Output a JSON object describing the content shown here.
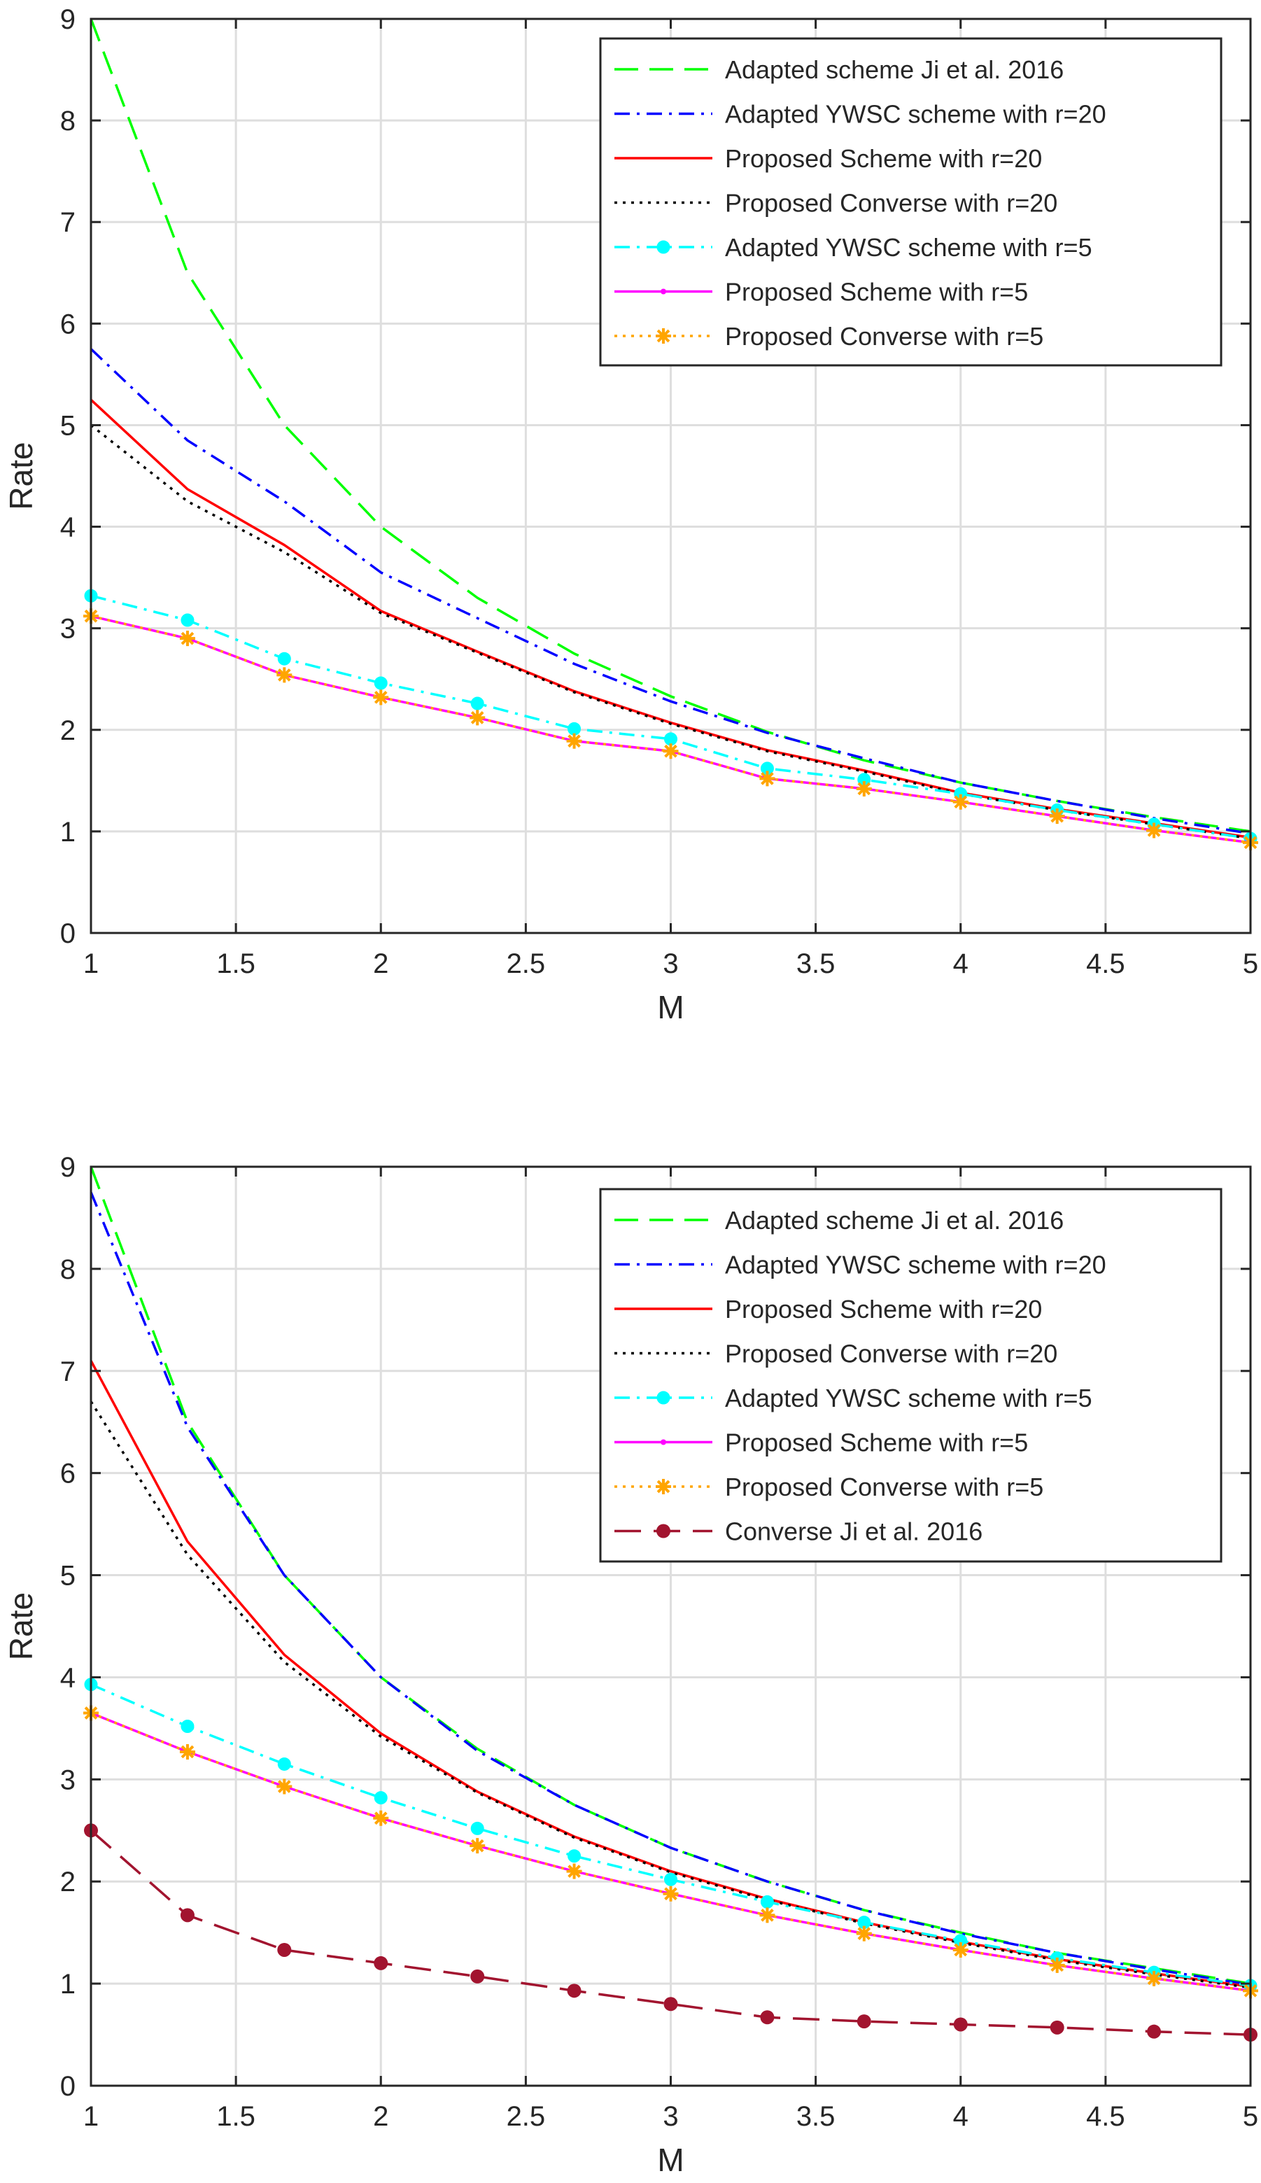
{
  "chart_data": [
    {
      "type": "line",
      "title": "",
      "xlabel": "M",
      "ylabel": "Rate",
      "xlim": [
        1,
        5
      ],
      "ylim": [
        0,
        9
      ],
      "xticks": [
        1,
        1.5,
        2,
        2.5,
        3,
        3.5,
        4,
        4.5,
        5
      ],
      "xtick_labels": [
        "1",
        "1.5",
        "2",
        "2.5",
        "3",
        "3.5",
        "4",
        "4.5",
        "5"
      ],
      "yticks": [
        0,
        1,
        2,
        3,
        4,
        5,
        6,
        7,
        8,
        9
      ],
      "ytick_labels": [
        "0",
        "1",
        "2",
        "3",
        "4",
        "5",
        "6",
        "7",
        "8",
        "9"
      ],
      "grid": true,
      "legend_position": "top-right",
      "x": [
        1,
        1.333,
        1.667,
        2,
        2.333,
        2.667,
        3,
        3.333,
        3.667,
        4,
        4.333,
        4.667,
        5
      ],
      "series": [
        {
          "name": "Adapted scheme Ji et al. 2016",
          "color": "#00ff00",
          "dash": "dashed",
          "marker": "none",
          "values": [
            9.0,
            6.5,
            5.0,
            4.0,
            3.3,
            2.75,
            2.33,
            1.98,
            1.7,
            1.48,
            1.3,
            1.14,
            1.0
          ]
        },
        {
          "name": "Adapted YWSC scheme with r=20",
          "color": "#0000ff",
          "dash": "dashdot",
          "marker": "none",
          "values": [
            5.75,
            4.85,
            4.25,
            3.55,
            3.1,
            2.65,
            2.28,
            1.97,
            1.72,
            1.48,
            1.3,
            1.13,
            0.98
          ]
        },
        {
          "name": "Proposed Scheme with r=20",
          "color": "#ff0000",
          "dash": "solid",
          "marker": "none",
          "values": [
            5.25,
            4.37,
            3.82,
            3.17,
            2.77,
            2.38,
            2.07,
            1.8,
            1.6,
            1.38,
            1.22,
            1.08,
            0.94
          ]
        },
        {
          "name": "Proposed Converse with r=20",
          "color": "#000000",
          "dash": "dotted",
          "marker": "none",
          "values": [
            5.0,
            4.25,
            3.75,
            3.15,
            2.76,
            2.37,
            2.06,
            1.79,
            1.59,
            1.37,
            1.21,
            1.07,
            0.93
          ]
        },
        {
          "name": "Adapted YWSC scheme with r=5",
          "color": "#00ffff",
          "dash": "dashdot",
          "marker": "circle",
          "values": [
            3.32,
            3.08,
            2.7,
            2.46,
            2.26,
            2.01,
            1.91,
            1.62,
            1.51,
            1.37,
            1.21,
            1.07,
            0.93
          ]
        },
        {
          "name": "Proposed Scheme with r=5",
          "color": "#ff00ff",
          "dash": "solid",
          "marker": "dot",
          "values": [
            3.12,
            2.9,
            2.54,
            2.32,
            2.12,
            1.89,
            1.79,
            1.52,
            1.42,
            1.29,
            1.15,
            1.01,
            0.89
          ]
        },
        {
          "name": "Proposed Converse with r=5",
          "color": "#ffa500",
          "dash": "dotted",
          "marker": "star",
          "values": [
            3.12,
            2.9,
            2.54,
            2.32,
            2.12,
            1.89,
            1.79,
            1.52,
            1.42,
            1.29,
            1.15,
            1.01,
            0.89
          ]
        }
      ]
    },
    {
      "type": "line",
      "title": "",
      "xlabel": "M",
      "ylabel": "Rate",
      "xlim": [
        1,
        5
      ],
      "ylim": [
        0,
        9
      ],
      "xticks": [
        1,
        1.5,
        2,
        2.5,
        3,
        3.5,
        4,
        4.5,
        5
      ],
      "xtick_labels": [
        "1",
        "1.5",
        "2",
        "2.5",
        "3",
        "3.5",
        "4",
        "4.5",
        "5"
      ],
      "yticks": [
        0,
        1,
        2,
        3,
        4,
        5,
        6,
        7,
        8,
        9
      ],
      "ytick_labels": [
        "0",
        "1",
        "2",
        "3",
        "4",
        "5",
        "6",
        "7",
        "8",
        "9"
      ],
      "grid": true,
      "legend_position": "top-right",
      "x": [
        1,
        1.333,
        1.667,
        2,
        2.333,
        2.667,
        3,
        3.333,
        3.667,
        4,
        4.333,
        4.667,
        5
      ],
      "series": [
        {
          "name": "Adapted scheme Ji et al. 2016",
          "color": "#00ff00",
          "dash": "dashed",
          "marker": "none",
          "values": [
            9.0,
            6.5,
            5.0,
            4.0,
            3.3,
            2.75,
            2.33,
            2.0,
            1.72,
            1.5,
            1.3,
            1.15,
            1.0
          ]
        },
        {
          "name": "Adapted YWSC scheme with r=20",
          "color": "#0000ff",
          "dash": "dashdot",
          "marker": "none",
          "values": [
            8.75,
            6.45,
            5.0,
            4.0,
            3.28,
            2.75,
            2.33,
            2.0,
            1.72,
            1.49,
            1.3,
            1.14,
            0.99
          ]
        },
        {
          "name": "Proposed Scheme with r=20",
          "color": "#ff0000",
          "dash": "solid",
          "marker": "none",
          "values": [
            7.1,
            5.33,
            4.22,
            3.45,
            2.88,
            2.44,
            2.1,
            1.83,
            1.6,
            1.41,
            1.24,
            1.1,
            0.97
          ]
        },
        {
          "name": "Proposed Converse with r=20",
          "color": "#000000",
          "dash": "dotted",
          "marker": "none",
          "values": [
            6.7,
            5.2,
            4.15,
            3.42,
            2.87,
            2.43,
            2.09,
            1.82,
            1.59,
            1.4,
            1.23,
            1.09,
            0.96
          ]
        },
        {
          "name": "Adapted YWSC scheme with r=5",
          "color": "#00ffff",
          "dash": "dashdot",
          "marker": "circle",
          "values": [
            3.93,
            3.52,
            3.15,
            2.82,
            2.52,
            2.25,
            2.02,
            1.8,
            1.6,
            1.42,
            1.25,
            1.11,
            0.98
          ]
        },
        {
          "name": "Proposed Scheme with r=5",
          "color": "#ff00ff",
          "dash": "solid",
          "marker": "dot",
          "values": [
            3.65,
            3.27,
            2.93,
            2.62,
            2.35,
            2.1,
            1.88,
            1.67,
            1.49,
            1.33,
            1.18,
            1.05,
            0.93
          ]
        },
        {
          "name": "Proposed Converse with r=5",
          "color": "#ffa500",
          "dash": "dotted",
          "marker": "star",
          "values": [
            3.65,
            3.27,
            2.93,
            2.62,
            2.35,
            2.1,
            1.88,
            1.67,
            1.49,
            1.33,
            1.18,
            1.05,
            0.93
          ]
        },
        {
          "name": "Converse Ji et al. 2016",
          "color": "#a2142f",
          "dash": "longdash",
          "marker": "circle-filled",
          "values": [
            2.5,
            1.67,
            1.33,
            1.2,
            1.07,
            0.93,
            0.8,
            0.67,
            0.63,
            0.6,
            0.57,
            0.53,
            0.5
          ]
        }
      ]
    }
  ]
}
